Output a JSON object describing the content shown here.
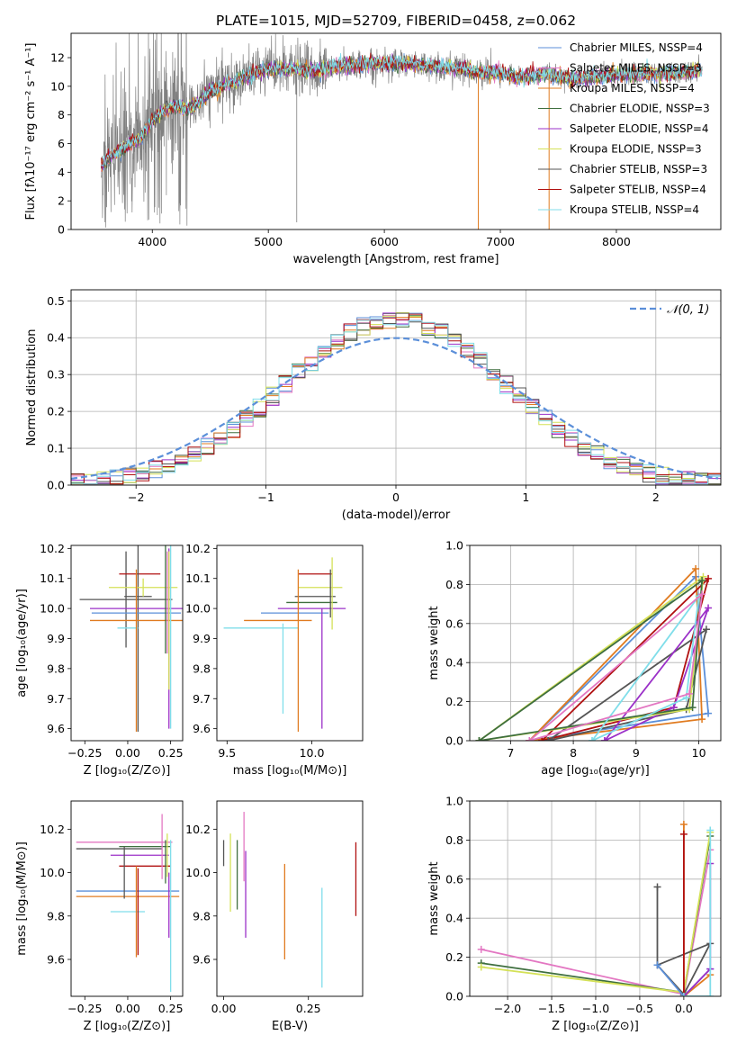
{
  "chart_data": [
    {
      "id": "spectrum",
      "type": "line",
      "title": "PLATE=1015, MJD=52709, FIBERID=0458, z=0.062",
      "xlabel": "wavelength [Angstrom, rest frame]",
      "ylabel": "Flux [fλ10⁻¹⁷ erg cm⁻² s⁻¹ A⁻¹]",
      "xlim": [
        3300,
        8900
      ],
      "ylim": [
        0,
        13.7
      ],
      "xticks": [
        4000,
        5000,
        6000,
        7000,
        8000
      ],
      "yticks": [
        0,
        2,
        4,
        6,
        8,
        10,
        12
      ],
      "grid": false,
      "legend_position": "right",
      "data_series": {
        "name": "data",
        "color": "#808080"
      },
      "continuum": {
        "x": [
          3560,
          3620,
          3700,
          3800,
          3900,
          4000,
          4100,
          4200,
          4300,
          4400,
          4500,
          4600,
          4700,
          4800,
          4900,
          5000,
          5200,
          5400,
          5600,
          5800,
          6000,
          6200,
          6400,
          6600,
          6800,
          7000,
          7200,
          7400,
          7600,
          7800,
          8000,
          8200,
          8400,
          8600,
          8700
        ],
        "y": [
          4.3,
          5.0,
          5.5,
          5.9,
          6.4,
          7.6,
          8.3,
          8.6,
          8.4,
          8.9,
          9.6,
          10.0,
          10.3,
          10.7,
          11.0,
          11.2,
          11.2,
          11.0,
          11.4,
          11.5,
          11.6,
          11.6,
          11.4,
          11.3,
          11.0,
          10.9,
          10.6,
          10.9,
          10.5,
          10.6,
          10.8,
          10.9,
          10.9,
          11.0,
          11.1
        ]
      },
      "legend": [
        {
          "label": "Chabrier MILES, N_SSP=4",
          "color": "#5b8fd9"
        },
        {
          "label": "Salpeter MILES, N_SSP=3",
          "color": "#e377c2"
        },
        {
          "label": "Kroupa MILES, N_SSP=4",
          "color": "#e07b20"
        },
        {
          "label": "Chabrier ELODIE, N_SSP=3",
          "color": "#3f6f3f"
        },
        {
          "label": "Salpeter ELODIE, N_SSP=4",
          "color": "#9b30c8"
        },
        {
          "label": "Kroupa ELODIE, N_SSP=3",
          "color": "#d4e157"
        },
        {
          "label": "Chabrier STELIB, N_SSP=3",
          "color": "#555555"
        },
        {
          "label": "Salpeter STELIB, N_SSP=4",
          "color": "#b01010"
        },
        {
          "label": "Kroupa STELIB, N_SSP=4",
          "color": "#80deea"
        }
      ]
    },
    {
      "id": "residuals",
      "type": "step",
      "xlabel": "(data-model)/error",
      "ylabel": "Normed distribution",
      "xlim": [
        -2.5,
        2.5
      ],
      "ylim": [
        0,
        0.53
      ],
      "xticks": [
        -2,
        -1,
        0,
        1,
        2
      ],
      "yticks": [
        0.0,
        0.1,
        0.2,
        0.3,
        0.4,
        0.5
      ],
      "grid": true,
      "legend": [
        {
          "label": "𝒩(0, 1)",
          "color": "#5b8fd9",
          "style": "dashed"
        }
      ],
      "legend_position": "top-right",
      "bin_width": 0.1
    },
    {
      "id": "age-vs-Z",
      "type": "errorbar",
      "xlabel": "Z [log₁₀(Z/Z⊙)]",
      "ylabel": "age  [log₁₀(age/yr)]",
      "xlim": [
        -0.33,
        0.32
      ],
      "ylim": [
        9.56,
        10.21
      ],
      "xticks": [
        -0.25,
        0.0,
        0.25
      ],
      "xticklabels": [
        "−0.25",
        "0.00",
        "0.25"
      ],
      "yticks": [
        9.6,
        9.7,
        9.8,
        9.9,
        10.0,
        10.1,
        10.2
      ],
      "grid": false,
      "points": [
        {
          "x": -0.01,
          "y": 10.03,
          "xerr": 0.27,
          "yerr": 0.16,
          "color": "#555555"
        },
        {
          "x": 0.07,
          "y": 10.115,
          "xerr": 0.12,
          "yerr": 0.01,
          "color": "#b01010"
        },
        {
          "x": 0.06,
          "y": 10.04,
          "xerr": 0.08,
          "yerr": 0.45,
          "color": "#555555"
        },
        {
          "x": 0.09,
          "y": 10.07,
          "xerr": 0.2,
          "yerr": 0.03,
          "color": "#d4e157"
        },
        {
          "x": 0.05,
          "y": 10.0,
          "xerr": 0.27,
          "yerr": 0.01,
          "color": "#9b30c8"
        },
        {
          "x": 0.05,
          "y": 9.985,
          "xerr": 0.26,
          "yerr": 0.01,
          "color": "#5b8fd9"
        },
        {
          "x": 0.05,
          "y": 9.96,
          "xerr": 0.27,
          "yerr": 0.01,
          "color": "#e07b20"
        },
        {
          "x": 0.0,
          "y": 9.935,
          "xerr": 0.06,
          "yerr": 0.01,
          "color": "#80deea"
        },
        {
          "x": 0.05,
          "y": 9.86,
          "xerr": 0.005,
          "yerr": 0.27,
          "color": "#e07b20"
        },
        {
          "x": 0.22,
          "y": 10.1,
          "xerr": 0.005,
          "yerr": 0.25,
          "color": "#3f6f3f"
        },
        {
          "x": 0.24,
          "y": 9.9,
          "xerr": 0.005,
          "yerr": 0.3,
          "color": "#9b30c8"
        },
        {
          "x": 0.25,
          "y": 9.95,
          "xerr": 0.005,
          "yerr": 0.35,
          "color": "#80deea"
        },
        {
          "x": 0.23,
          "y": 10.02,
          "xerr": 0.005,
          "yerr": 0.17,
          "color": "#e377c2"
        },
        {
          "x": 0.24,
          "y": 9.96,
          "xerr": 0.005,
          "yerr": 0.23,
          "color": "#d4e157"
        }
      ]
    },
    {
      "id": "age-vs-mass",
      "type": "errorbar",
      "xlabel": "mass [log₁₀(M/M⊙)]",
      "ylabel": "",
      "xlim": [
        9.44,
        10.3
      ],
      "ylim": [
        9.56,
        10.21
      ],
      "xticks": [
        9.5,
        10.0
      ],
      "xticklabels": [
        "9.5",
        "10.0"
      ],
      "yticks": [
        9.6,
        9.7,
        9.8,
        9.9,
        10.0,
        10.1,
        10.2
      ],
      "grid": false,
      "points": [
        {
          "x": 10.02,
          "y": 10.115,
          "xerr": 0.1,
          "yerr": 0.01,
          "color": "#b01010"
        },
        {
          "x": 10.05,
          "y": 10.07,
          "xerr": 0.13,
          "yerr": 0.01,
          "color": "#d4e157"
        },
        {
          "x": 10.02,
          "y": 10.04,
          "xerr": 0.12,
          "yerr": 0.01,
          "color": "#555555"
        },
        {
          "x": 10.0,
          "y": 10.02,
          "xerr": 0.15,
          "yerr": 0.01,
          "color": "#3f6f3f"
        },
        {
          "x": 10.0,
          "y": 10.0,
          "xerr": 0.2,
          "yerr": 0.01,
          "color": "#9b30c8"
        },
        {
          "x": 9.9,
          "y": 9.985,
          "xerr": 0.2,
          "yerr": 0.01,
          "color": "#5b8fd9"
        },
        {
          "x": 9.8,
          "y": 9.96,
          "xerr": 0.2,
          "yerr": 0.01,
          "color": "#e07b20"
        },
        {
          "x": 9.7,
          "y": 9.935,
          "xerr": 0.22,
          "yerr": 0.01,
          "color": "#80deea"
        },
        {
          "x": 9.83,
          "y": 9.8,
          "xerr": 0.005,
          "yerr": 0.15,
          "color": "#80deea"
        },
        {
          "x": 9.92,
          "y": 9.86,
          "xerr": 0.005,
          "yerr": 0.27,
          "color": "#e07b20"
        },
        {
          "x": 10.06,
          "y": 9.8,
          "xerr": 0.005,
          "yerr": 0.2,
          "color": "#9b30c8"
        },
        {
          "x": 10.12,
          "y": 10.05,
          "xerr": 0.005,
          "yerr": 0.12,
          "color": "#d4e157"
        },
        {
          "x": 10.11,
          "y": 10.05,
          "xerr": 0.005,
          "yerr": 0.08,
          "color": "#555555"
        }
      ]
    },
    {
      "id": "mass-weight-vs-age",
      "type": "line",
      "xlabel": "age  [log₁₀(age/yr)]",
      "ylabel": "mass weight",
      "xlim": [
        6.35,
        10.35
      ],
      "ylim": [
        0,
        1.0
      ],
      "xticks": [
        7,
        8,
        9,
        10
      ],
      "yticks": [
        0.0,
        0.2,
        0.4,
        0.6,
        0.8,
        1.0
      ],
      "grid": true,
      "series": [
        {
          "color": "#5b8fd9",
          "x": [
            7.3,
            9.95,
            10.15,
            7.3
          ],
          "y": [
            0.0,
            0.84,
            0.14,
            0.0
          ]
        },
        {
          "color": "#e07b20",
          "x": [
            7.3,
            9.95,
            10.05,
            7.3
          ],
          "y": [
            0.0,
            0.88,
            0.11,
            0.0
          ]
        },
        {
          "color": "#b01010",
          "x": [
            7.5,
            9.6,
            10.15,
            7.5
          ],
          "y": [
            0.0,
            0.17,
            0.83,
            0.0
          ]
        },
        {
          "color": "#555555",
          "x": [
            7.6,
            9.8,
            10.12,
            7.6
          ],
          "y": [
            0.0,
            0.16,
            0.57,
            0.0
          ]
        },
        {
          "color": "#9b30c8",
          "x": [
            8.5,
            9.6,
            10.15,
            8.5
          ],
          "y": [
            0.0,
            0.17,
            0.68,
            0.0
          ]
        },
        {
          "color": "#d4e157",
          "x": [
            6.5,
            9.85,
            10.07,
            6.5
          ],
          "y": [
            0.0,
            0.16,
            0.84,
            0.0
          ]
        },
        {
          "color": "#3f6f3f",
          "x": [
            6.5,
            9.9,
            10.05,
            6.5
          ],
          "y": [
            0.0,
            0.17,
            0.82,
            0.0
          ]
        },
        {
          "color": "#80deea",
          "x": [
            8.3,
            9.8,
            10.0,
            8.3
          ],
          "y": [
            0.0,
            0.22,
            0.74,
            0.0
          ]
        },
        {
          "color": "#e377c2",
          "x": [
            7.3,
            9.85,
            10.05,
            7.3
          ],
          "y": [
            0.0,
            0.24,
            0.75,
            0.0
          ]
        }
      ]
    },
    {
      "id": "mass-vs-Z",
      "type": "errorbar",
      "xlabel": "Z [log₁₀(Z/Z⊙)]",
      "ylabel": "mass [log₁₀(M/M⊙)]",
      "xlim": [
        -0.33,
        0.32
      ],
      "ylim": [
        9.43,
        10.33
      ],
      "xticks": [
        -0.25,
        0.0,
        0.25
      ],
      "xticklabels": [
        "−0.25",
        "0.00",
        "0.25"
      ],
      "yticks": [
        9.6,
        9.8,
        10.0,
        10.2
      ],
      "grid": false,
      "points": [
        {
          "x": -0.02,
          "y": 10.14,
          "xerr": 0.28,
          "yerr": 0.01,
          "color": "#e377c2"
        },
        {
          "x": -0.05,
          "y": 10.11,
          "xerr": 0.25,
          "yerr": 0.01,
          "color": "#555555"
        },
        {
          "x": 0.1,
          "y": 10.12,
          "xerr": 0.15,
          "yerr": 0.01,
          "color": "#3f6f3f"
        },
        {
          "x": 0.07,
          "y": 10.08,
          "xerr": 0.17,
          "yerr": 0.01,
          "color": "#9b30c8"
        },
        {
          "x": 0.1,
          "y": 10.03,
          "xerr": 0.15,
          "yerr": 0.01,
          "color": "#b01010"
        },
        {
          "x": 0.0,
          "y": 9.915,
          "xerr": 0.3,
          "yerr": 0.01,
          "color": "#5b8fd9"
        },
        {
          "x": 0.0,
          "y": 9.89,
          "xerr": 0.3,
          "yerr": 0.01,
          "color": "#e07b20"
        },
        {
          "x": 0.0,
          "y": 9.82,
          "xerr": 0.1,
          "yerr": 0.01,
          "color": "#80deea"
        },
        {
          "x": 0.05,
          "y": 9.82,
          "xerr": 0.005,
          "yerr": 0.21,
          "color": "#e07b20"
        },
        {
          "x": 0.06,
          "y": 9.82,
          "xerr": 0.005,
          "yerr": 0.2,
          "color": "#b01010"
        },
        {
          "x": -0.02,
          "y": 10.0,
          "xerr": 0.005,
          "yerr": 0.12,
          "color": "#555555"
        },
        {
          "x": 0.2,
          "y": 10.12,
          "xerr": 0.005,
          "yerr": 0.15,
          "color": "#e377c2"
        },
        {
          "x": 0.22,
          "y": 10.05,
          "xerr": 0.005,
          "yerr": 0.1,
          "color": "#3f6f3f"
        },
        {
          "x": 0.24,
          "y": 9.85,
          "xerr": 0.005,
          "yerr": 0.15,
          "color": "#9b30c8"
        },
        {
          "x": 0.25,
          "y": 9.8,
          "xerr": 0.005,
          "yerr": 0.35,
          "color": "#80deea"
        },
        {
          "x": 0.23,
          "y": 10.08,
          "xerr": 0.005,
          "yerr": 0.1,
          "color": "#d4e157"
        }
      ]
    },
    {
      "id": "mass-vs-EBV",
      "type": "errorbar",
      "xlabel": "E(B-V)",
      "ylabel": "",
      "xlim": [
        -0.02,
        0.41
      ],
      "ylim": [
        9.43,
        10.33
      ],
      "xticks": [
        0.0,
        0.25
      ],
      "xticklabels": [
        "0.00",
        "0.25"
      ],
      "yticks": [
        9.6,
        9.8,
        10.0,
        10.2
      ],
      "grid": false,
      "points": [
        {
          "x": 0.0,
          "y": 10.09,
          "xerr": 0,
          "yerr": 0.06,
          "color": "#555555"
        },
        {
          "x": 0.02,
          "y": 10.0,
          "xerr": 0,
          "yerr": 0.18,
          "color": "#d4e157"
        },
        {
          "x": 0.04,
          "y": 9.99,
          "xerr": 0,
          "yerr": 0.16,
          "color": "#3f6f3f"
        },
        {
          "x": 0.06,
          "y": 10.12,
          "xerr": 0,
          "yerr": 0.16,
          "color": "#e377c2"
        },
        {
          "x": 0.065,
          "y": 9.9,
          "xerr": 0,
          "yerr": 0.2,
          "color": "#9b30c8"
        },
        {
          "x": 0.18,
          "y": 9.82,
          "xerr": 0,
          "yerr": 0.22,
          "color": "#e07b20"
        },
        {
          "x": 0.29,
          "y": 9.7,
          "xerr": 0,
          "yerr": 0.23,
          "color": "#80deea"
        },
        {
          "x": 0.39,
          "y": 9.97,
          "xerr": 0,
          "yerr": 0.17,
          "color": "#b01010"
        }
      ]
    },
    {
      "id": "mass-weight-vs-Z",
      "type": "line",
      "xlabel": "Z [log₁₀(Z/Z⊙)]",
      "ylabel": "mass weight",
      "xlim": [
        -2.43,
        0.42
      ],
      "ylim": [
        0,
        1.0
      ],
      "xticks": [
        -2.0,
        -1.5,
        -1.0,
        -0.5,
        0.0
      ],
      "xticklabels": [
        "−2.0",
        "−1.5",
        "−1.0",
        "−0.5",
        "0.0"
      ],
      "yticks": [
        0.0,
        0.2,
        0.4,
        0.6,
        0.8,
        1.0
      ],
      "grid": true,
      "series": [
        {
          "color": "#e377c2",
          "x": [
            -2.3,
            0.0,
            0.3
          ],
          "y": [
            0.24,
            0.01,
            0.75
          ]
        },
        {
          "color": "#3f6f3f",
          "x": [
            -2.3,
            0.0,
            0.3
          ],
          "y": [
            0.17,
            0.02,
            0.82
          ]
        },
        {
          "color": "#d4e157",
          "x": [
            -2.3,
            0.0,
            0.3
          ],
          "y": [
            0.15,
            0.02,
            0.84
          ]
        },
        {
          "color": "#555555",
          "x": [
            -0.3,
            -0.3,
            0.0,
            0.3,
            -0.3
          ],
          "y": [
            0.56,
            0.16,
            0.01,
            0.27,
            0.16
          ]
        },
        {
          "color": "#5b8fd9",
          "x": [
            -0.3,
            0.0,
            0.3
          ],
          "y": [
            0.16,
            0.0,
            0.14
          ]
        },
        {
          "color": "#e07b20",
          "x": [
            0.0,
            0.0,
            0.3,
            0.0
          ],
          "y": [
            0.88,
            0.0,
            0.11,
            0.0
          ]
        },
        {
          "color": "#b01010",
          "x": [
            0.0,
            0.0
          ],
          "y": [
            0.83,
            0.0
          ]
        },
        {
          "color": "#9b30c8",
          "x": [
            0.3,
            0.3,
            0.0
          ],
          "y": [
            0.68,
            0.14,
            0.0
          ]
        },
        {
          "color": "#80deea",
          "x": [
            0.3,
            0.3,
            0.0
          ],
          "y": [
            0.85,
            0.0,
            0.0
          ]
        }
      ]
    }
  ]
}
